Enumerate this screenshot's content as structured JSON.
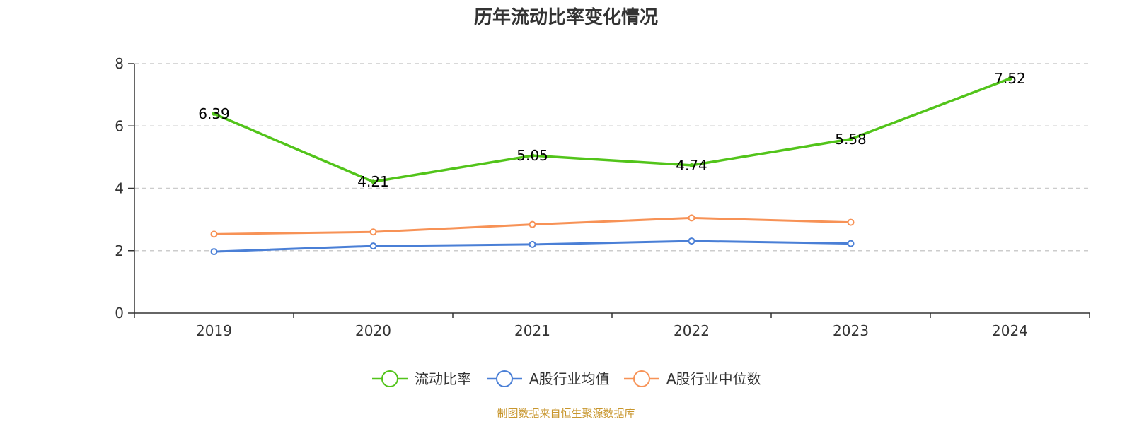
{
  "chart_data": {
    "type": "line",
    "title": "历年流动比率变化情况",
    "categories": [
      "2019",
      "2020",
      "2021",
      "2022",
      "2023",
      "2024"
    ],
    "ylim": [
      0,
      8
    ],
    "yticks": [
      0,
      2,
      4,
      6,
      8
    ],
    "grid": true,
    "legend_position": "bottom",
    "series": [
      {
        "name": "流动比率",
        "color": "#52c41a",
        "values": [
          6.39,
          4.21,
          5.05,
          4.74,
          5.58,
          7.52
        ],
        "labels": [
          "6.39",
          "4.21",
          "5.05",
          "4.74",
          "5.58",
          "7.52"
        ]
      },
      {
        "name": "A股行业均值",
        "color": "#4a7fd6",
        "values": [
          1.97,
          2.15,
          2.2,
          2.31,
          2.23,
          null
        ]
      },
      {
        "name": "A股行业中位数",
        "color": "#f79256",
        "values": [
          2.53,
          2.6,
          2.84,
          3.05,
          2.91,
          null
        ]
      }
    ],
    "source": "制图数据来自恒生聚源数据库"
  }
}
